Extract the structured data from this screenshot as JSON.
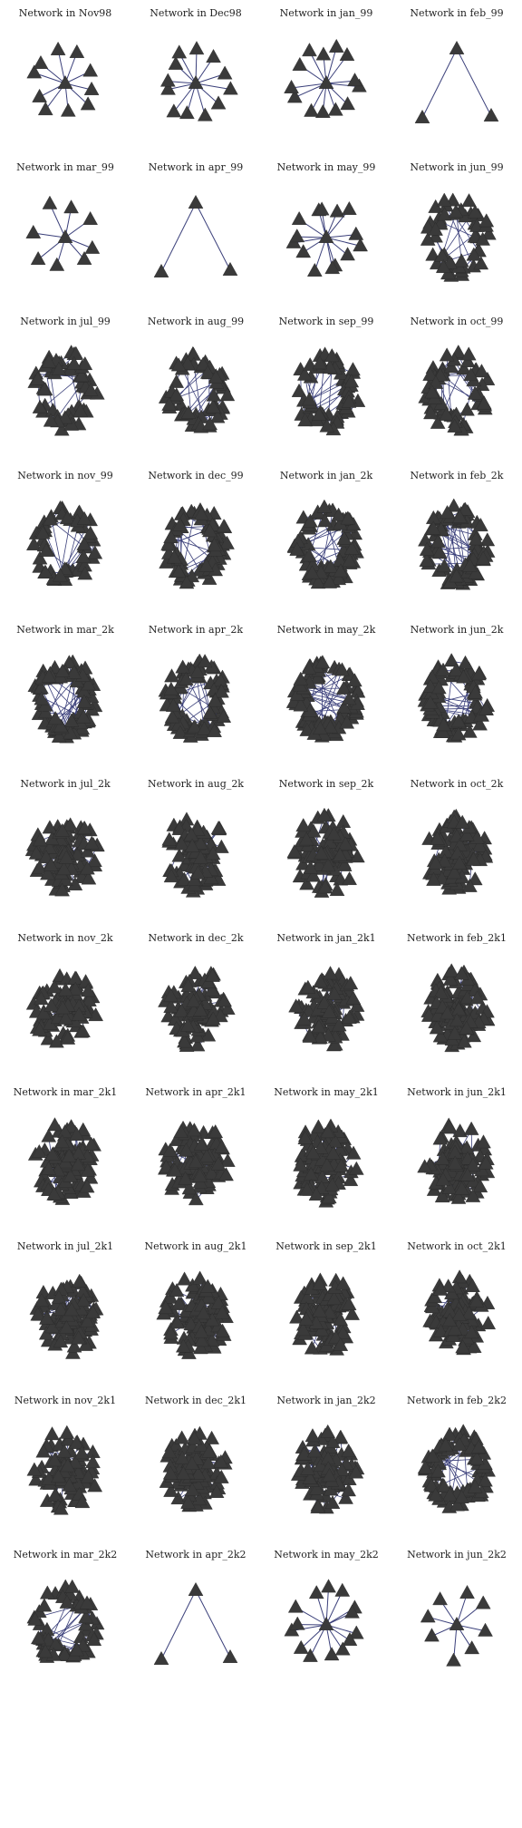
{
  "figure": {
    "panels": [
      {
        "title": "Network in Nov98",
        "density": 0.15
      },
      {
        "title": "Network in Dec98",
        "density": 0.2
      },
      {
        "title": "Network in jan_99",
        "density": 0.22
      },
      {
        "title": "Network in feb_99",
        "density": 0.05
      },
      {
        "title": "Network in mar_99",
        "density": 0.1
      },
      {
        "title": "Network in apr_99",
        "density": 0.05
      },
      {
        "title": "Network in may_99",
        "density": 0.25
      },
      {
        "title": "Network in jun_99",
        "density": 0.28
      },
      {
        "title": "Network in jul_99",
        "density": 0.35
      },
      {
        "title": "Network in aug_99",
        "density": 0.35
      },
      {
        "title": "Network in sep_99",
        "density": 0.35
      },
      {
        "title": "Network in oct_99",
        "density": 0.35
      },
      {
        "title": "Network in nov_99",
        "density": 0.35
      },
      {
        "title": "Network in dec_99",
        "density": 0.55
      },
      {
        "title": "Network in jan_2k",
        "density": 0.6
      },
      {
        "title": "Network in feb_2k",
        "density": 0.6
      },
      {
        "title": "Network in mar_2k",
        "density": 0.7
      },
      {
        "title": "Network in apr_2k",
        "density": 0.6
      },
      {
        "title": "Network in may_2k",
        "density": 0.65
      },
      {
        "title": "Network in jun_2k",
        "density": 0.65
      },
      {
        "title": "Network in jul_2k",
        "density": 0.8
      },
      {
        "title": "Network in aug_2k",
        "density": 0.85
      },
      {
        "title": "Network in sep_2k",
        "density": 0.8
      },
      {
        "title": "Network in oct_2k",
        "density": 0.8
      },
      {
        "title": "Network in nov_2k",
        "density": 0.85
      },
      {
        "title": "Network in dec_2k",
        "density": 0.85
      },
      {
        "title": "Network in jan_2k1",
        "density": 0.85
      },
      {
        "title": "Network in feb_2k1",
        "density": 0.85
      },
      {
        "title": "Network in mar_2k1",
        "density": 0.9
      },
      {
        "title": "Network in apr_2k1",
        "density": 0.9
      },
      {
        "title": "Network in may_2k1",
        "density": 0.9
      },
      {
        "title": "Network in jun_2k1",
        "density": 0.9
      },
      {
        "title": "Network in jul_2k1",
        "density": 0.85
      },
      {
        "title": "Network in aug_2k1",
        "density": 0.9
      },
      {
        "title": "Network in sep_2k1",
        "density": 0.85
      },
      {
        "title": "Network in oct_2k1",
        "density": 0.8
      },
      {
        "title": "Network in nov_2k1",
        "density": 0.85
      },
      {
        "title": "Network in dec_2k1",
        "density": 0.8
      },
      {
        "title": "Network in jan_2k2",
        "density": 0.75
      },
      {
        "title": "Network in feb_2k2",
        "density": 0.7
      },
      {
        "title": "Network in mar_2k2",
        "density": 0.4
      },
      {
        "title": "Network in apr_2k2",
        "density": 0.05
      },
      {
        "title": "Network in may_2k2",
        "density": 0.25
      },
      {
        "title": "Network in jun_2k2",
        "density": 0.1
      }
    ]
  },
  "colors": {
    "node": "#3a3a3a",
    "edge": "#3a3f7a",
    "title": "#222222",
    "background": "#ffffff"
  }
}
